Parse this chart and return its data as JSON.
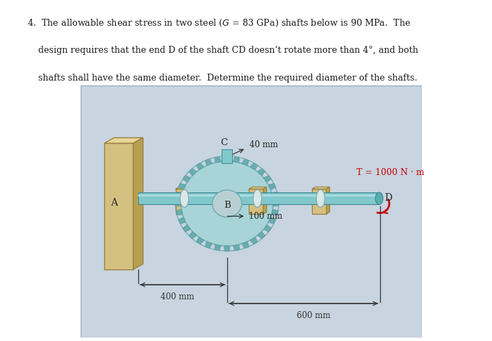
{
  "bg_color": "#c8d4e0",
  "outer_bg": "#ffffff",
  "text_color": "#1a1a1a",
  "torque_color": "#cc0000",
  "dim_color": "#333333",
  "shaft_color_light": "#80c8cc",
  "shaft_color_mid": "#5aacb0",
  "shaft_color_dark": "#3a8890",
  "gear_color_light": "#a8d4d8",
  "gear_color_mid": "#7ab8bc",
  "gear_teeth_color": "#6aacb0",
  "wall_front": "#d4c080",
  "wall_top": "#e8d898",
  "wall_side": "#b8a050",
  "support_front": "#d4c080",
  "support_top": "#e8d898",
  "support_side": "#b8a050",
  "bearing_color": "#d8e8e8",
  "line1": "4.  The allowable shear stress in two steel ($G$ = 83 GPa) shafts below is 90 MPa.  The",
  "line2": "    design requires that the end D of the shaft CD doesn’t rotate more than 4°, and both",
  "line3": "    shafts shall have the same diameter.  Determine the required diameter of the shafts.",
  "label_40mm": "40 mm",
  "label_100mm": "100 mm",
  "label_400mm": "400 mm",
  "label_600mm": "600 mm",
  "label_T": "T = 1000 N · m",
  "label_A": "A",
  "label_B": "B",
  "label_C": "C",
  "label_D": "D"
}
